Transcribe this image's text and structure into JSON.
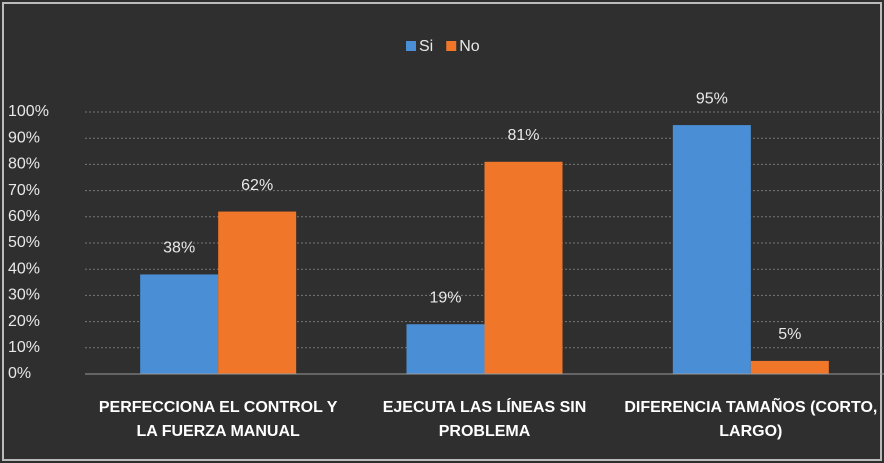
{
  "chart_data": {
    "type": "bar",
    "categories": [
      "PERFECCIONA EL CONTROL Y LA FUERZA MANUAL",
      "EJECUTA LAS LÍNEAS SIN PROBLEMA",
      "DIFERENCIA TAMAÑOS (CORTO, LARGO)"
    ],
    "series": [
      {
        "name": "Si",
        "color": "#4a8fd6",
        "values": [
          38,
          19,
          95
        ],
        "value_labels": [
          "38%",
          "19%",
          "95%"
        ]
      },
      {
        "name": "No",
        "color": "#f0772a",
        "values": [
          62,
          81,
          5
        ],
        "value_labels": [
          "62%",
          "81%",
          "5%"
        ]
      }
    ],
    "ylim": [
      0,
      100
    ],
    "yticks": [
      {
        "value": 0,
        "label": "0%"
      },
      {
        "value": 10,
        "label": "10%"
      },
      {
        "value": 20,
        "label": "20%"
      },
      {
        "value": 30,
        "label": "30%"
      },
      {
        "value": 40,
        "label": "40%"
      },
      {
        "value": 50,
        "label": "50%"
      },
      {
        "value": 60,
        "label": "60%"
      },
      {
        "value": 70,
        "label": "70%"
      },
      {
        "value": 80,
        "label": "80%"
      },
      {
        "value": 90,
        "label": "90%"
      },
      {
        "value": 100,
        "label": "100%"
      }
    ],
    "grid": true,
    "legend": "top"
  }
}
